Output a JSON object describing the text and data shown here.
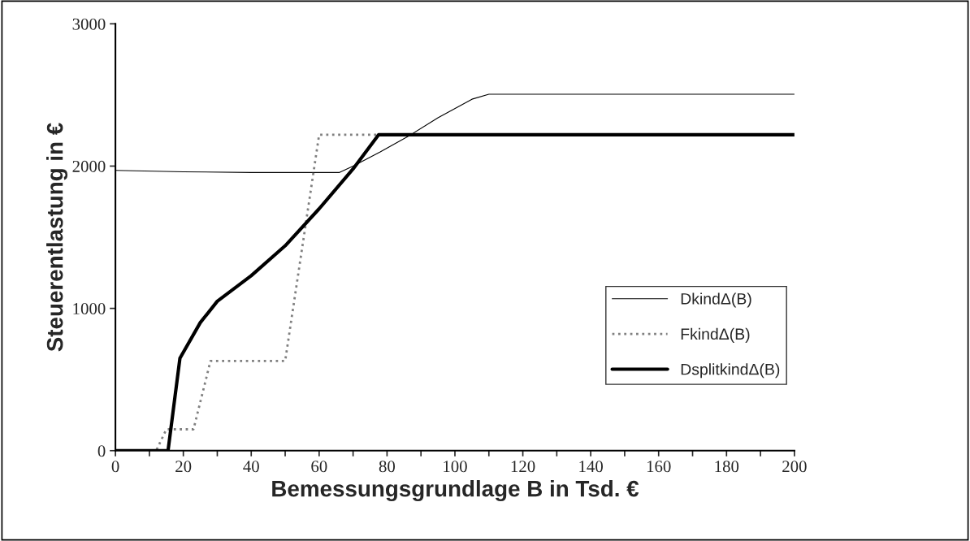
{
  "chart_data": {
    "type": "line",
    "xlabel": "Bemessungsgrundlage B in Tsd. €",
    "ylabel": "Steuerentlastung in €",
    "xlim": [
      0,
      200
    ],
    "ylim": [
      0,
      3000
    ],
    "xticks": [
      0,
      {
        "value": 10,
        "label": null
      },
      20,
      {
        "value": 30,
        "label": null
      },
      40,
      {
        "value": 50,
        "label": null
      },
      60,
      {
        "value": 70,
        "label": null
      },
      80,
      {
        "value": 90,
        "label": null
      },
      100,
      {
        "value": 110,
        "label": null
      },
      120,
      {
        "value": 130,
        "label": null
      },
      140,
      {
        "value": 150,
        "label": null
      },
      160,
      {
        "value": 170,
        "label": null
      },
      180,
      {
        "value": 190,
        "label": null
      },
      200
    ],
    "yticks": [
      0,
      1000,
      2000,
      3000
    ],
    "grid": false,
    "legend": "right",
    "marker": "none",
    "series": [
      {
        "name": "DkindΔ(B)",
        "color": "#000000",
        "line_style": "solid",
        "x": [
          0,
          20,
          40,
          66,
          70,
          78,
          87,
          95,
          105,
          110,
          200
        ],
        "values": [
          1970,
          1960,
          1955,
          1955,
          2000,
          2100,
          2220,
          2340,
          2470,
          2505,
          2505
        ]
      },
      {
        "name": "FkindΔ(B)",
        "color": "#808080",
        "line_style": "dotted",
        "x": [
          0,
          12,
          15,
          23,
          28,
          50,
          60,
          78
        ],
        "values": [
          0,
          0,
          150,
          150,
          630,
          630,
          2220,
          2220
        ]
      },
      {
        "name": "DsplitkindΔ(B)",
        "color": "#000000",
        "line_style": "solid",
        "x": [
          0,
          15.5,
          19,
          25,
          30,
          40,
          50,
          60,
          70,
          77.5,
          200
        ],
        "values": [
          0,
          0,
          650,
          900,
          1050,
          1230,
          1440,
          1700,
          1980,
          2220,
          2220
        ]
      }
    ]
  }
}
